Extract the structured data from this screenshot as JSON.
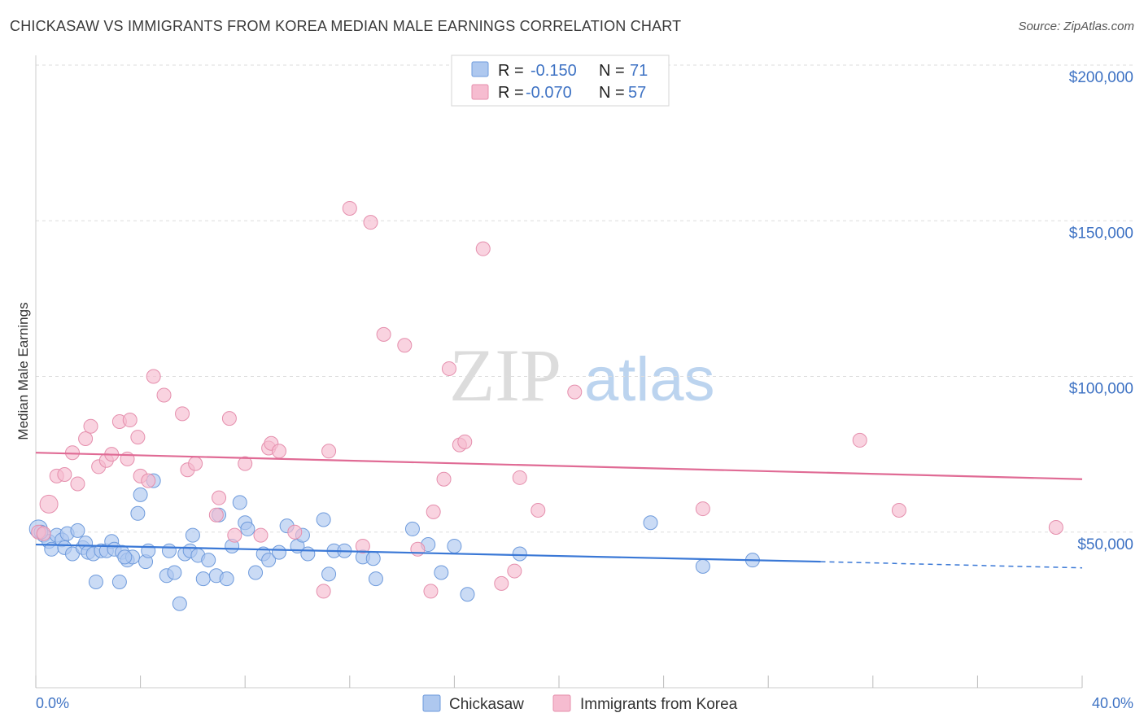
{
  "title": "CHICKASAW VS IMMIGRANTS FROM KOREA MEDIAN MALE EARNINGS CORRELATION CHART",
  "source": "Source: ZipAtlas.com",
  "watermark": {
    "zip": "ZIP",
    "atlas": "atlas"
  },
  "colors": {
    "blue": "#3a78d6",
    "blue_fill": "#aec8ef",
    "pink": "#e06b95",
    "pink_fill": "#f6bcd0",
    "label": "#3f73c4"
  },
  "legend": {
    "series": [
      {
        "r_label": "R =",
        "r_value": "-0.150",
        "n_label": "N =",
        "n_value": "71"
      },
      {
        "r_label": "R =",
        "r_value": "-0.070",
        "n_label": "N =",
        "n_value": "57"
      }
    ]
  },
  "chart_data": {
    "type": "scatter",
    "title": "CHICKASAW VS IMMIGRANTS FROM KOREA MEDIAN MALE EARNINGS CORRELATION CHART",
    "xlabel": "",
    "ylabel": "Median Male Earnings",
    "xlim": [
      0,
      40
    ],
    "ylim": [
      0,
      200000
    ],
    "x_tick_labels": [
      "0.0%",
      "40.0%"
    ],
    "y_ticks": [
      50000,
      100000,
      150000,
      200000
    ],
    "y_tick_labels": [
      "$50,000",
      "$100,000",
      "$150,000",
      "$200,000"
    ],
    "grid": true,
    "series": [
      {
        "name": "Chickasaw",
        "trend": {
          "x": [
            0,
            30,
            40
          ],
          "y": [
            46000,
            40500,
            38500
          ],
          "solid_until": 30
        },
        "points": [
          [
            0.1,
            51000
          ],
          [
            0.3,
            49000
          ],
          [
            0.5,
            47000
          ],
          [
            0.6,
            44500
          ],
          [
            0.8,
            49000
          ],
          [
            1.0,
            47500
          ],
          [
            1.1,
            45000
          ],
          [
            1.2,
            49500
          ],
          [
            1.4,
            43000
          ],
          [
            1.6,
            50500
          ],
          [
            1.8,
            45000
          ],
          [
            1.9,
            46500
          ],
          [
            2.0,
            43500
          ],
          [
            2.2,
            43000
          ],
          [
            2.3,
            34000
          ],
          [
            2.5,
            44000
          ],
          [
            2.7,
            44000
          ],
          [
            2.9,
            47000
          ],
          [
            3.0,
            44500
          ],
          [
            3.2,
            34000
          ],
          [
            3.3,
            43500
          ],
          [
            3.5,
            41000
          ],
          [
            3.7,
            42000
          ],
          [
            3.9,
            56000
          ],
          [
            4.0,
            62000
          ],
          [
            4.2,
            40500
          ],
          [
            4.3,
            44000
          ],
          [
            4.5,
            66500
          ],
          [
            5.0,
            36000
          ],
          [
            5.1,
            44000
          ],
          [
            5.3,
            37000
          ],
          [
            5.5,
            27000
          ],
          [
            5.7,
            43000
          ],
          [
            5.9,
            44000
          ],
          [
            6.0,
            49000
          ],
          [
            6.2,
            42500
          ],
          [
            6.4,
            35000
          ],
          [
            6.6,
            41000
          ],
          [
            6.9,
            36000
          ],
          [
            7.0,
            55500
          ],
          [
            7.3,
            35000
          ],
          [
            7.5,
            45500
          ],
          [
            7.8,
            59500
          ],
          [
            8.0,
            53000
          ],
          [
            8.1,
            51000
          ],
          [
            8.4,
            37000
          ],
          [
            8.7,
            43000
          ],
          [
            8.9,
            41000
          ],
          [
            9.3,
            43500
          ],
          [
            9.6,
            52000
          ],
          [
            10.0,
            45500
          ],
          [
            10.2,
            49000
          ],
          [
            10.4,
            43000
          ],
          [
            11.0,
            54000
          ],
          [
            11.2,
            36500
          ],
          [
            11.4,
            44000
          ],
          [
            11.8,
            44000
          ],
          [
            12.5,
            42000
          ],
          [
            12.9,
            41500
          ],
          [
            13.0,
            35000
          ],
          [
            14.4,
            51000
          ],
          [
            15.0,
            46000
          ],
          [
            15.5,
            37000
          ],
          [
            16.0,
            45500
          ],
          [
            16.5,
            30000
          ],
          [
            18.5,
            43000
          ],
          [
            23.5,
            53000
          ],
          [
            25.5,
            39000
          ],
          [
            27.4,
            41000
          ],
          [
            0.2,
            50000
          ],
          [
            3.4,
            42000
          ]
        ]
      },
      {
        "name": "Immigrants from Korea",
        "trend": {
          "x": [
            0,
            40
          ],
          "y": [
            75500,
            67000
          ]
        },
        "points": [
          [
            0.1,
            50000
          ],
          [
            0.5,
            59000
          ],
          [
            0.8,
            68000
          ],
          [
            1.1,
            68500
          ],
          [
            1.4,
            75500
          ],
          [
            1.6,
            65500
          ],
          [
            1.9,
            80000
          ],
          [
            2.1,
            84000
          ],
          [
            2.4,
            71000
          ],
          [
            2.7,
            73000
          ],
          [
            2.9,
            75000
          ],
          [
            3.2,
            85500
          ],
          [
            3.5,
            73500
          ],
          [
            3.6,
            86000
          ],
          [
            3.9,
            80500
          ],
          [
            4.0,
            68000
          ],
          [
            4.3,
            66500
          ],
          [
            4.5,
            100000
          ],
          [
            4.9,
            94000
          ],
          [
            5.6,
            88000
          ],
          [
            5.8,
            70000
          ],
          [
            6.1,
            72000
          ],
          [
            6.9,
            55500
          ],
          [
            7.0,
            61000
          ],
          [
            7.4,
            86500
          ],
          [
            7.6,
            49000
          ],
          [
            8.0,
            72000
          ],
          [
            8.6,
            49000
          ],
          [
            8.9,
            77000
          ],
          [
            9.0,
            78500
          ],
          [
            9.3,
            76000
          ],
          [
            9.9,
            50000
          ],
          [
            11.0,
            31000
          ],
          [
            11.2,
            76000
          ],
          [
            12.5,
            45500
          ],
          [
            12.0,
            154000
          ],
          [
            12.8,
            149500
          ],
          [
            13.3,
            113500
          ],
          [
            14.1,
            110000
          ],
          [
            14.6,
            44500
          ],
          [
            15.1,
            31000
          ],
          [
            15.2,
            56500
          ],
          [
            15.6,
            67000
          ],
          [
            15.8,
            102500
          ],
          [
            16.2,
            78000
          ],
          [
            16.4,
            79000
          ],
          [
            17.1,
            141000
          ],
          [
            17.8,
            33500
          ],
          [
            18.3,
            37500
          ],
          [
            18.5,
            67500
          ],
          [
            19.2,
            57000
          ],
          [
            20.6,
            95000
          ],
          [
            25.5,
            57500
          ],
          [
            31.5,
            79500
          ],
          [
            33.0,
            57000
          ],
          [
            39.0,
            51500
          ],
          [
            0.3,
            49500
          ]
        ]
      }
    ]
  }
}
